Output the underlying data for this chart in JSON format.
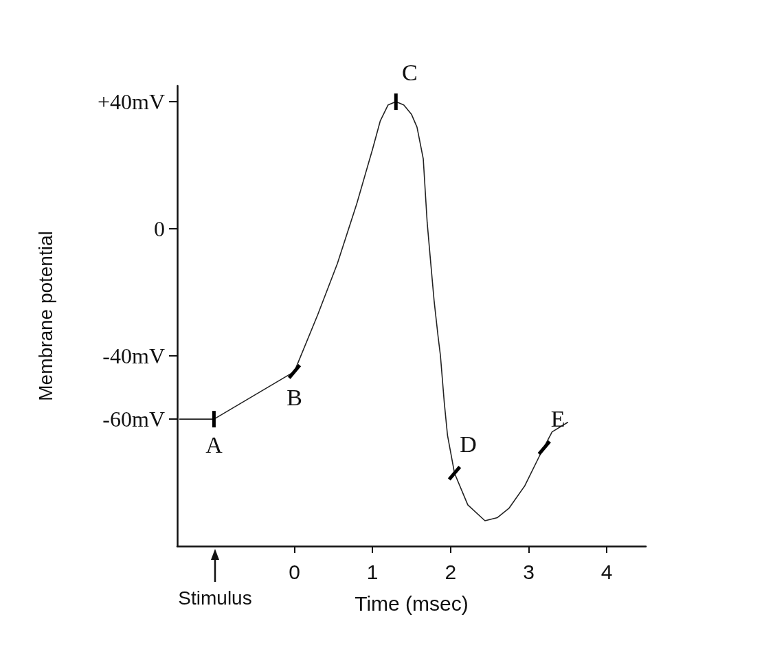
{
  "chart_data": {
    "type": "line",
    "xlabel": "Time (msec)",
    "ylabel": "Membrane potential",
    "x": [
      -1.47,
      -1.03,
      0,
      0.3,
      0.55,
      0.8,
      1.0,
      1.1,
      1.2,
      1.3,
      1.4,
      1.5,
      1.57,
      1.65,
      1.7,
      1.75,
      1.79,
      1.84,
      1.87,
      1.92,
      1.96,
      2.05,
      2.22,
      2.44,
      2.6,
      2.75,
      2.95,
      3.15,
      3.3,
      3.5
    ],
    "series": [
      {
        "color": "#222222",
        "values": [
          -60,
          -60,
          -45,
          -27,
          -11,
          8,
          25,
          34,
          39,
          40,
          39,
          36,
          32,
          22,
          2,
          -12,
          -23,
          -34,
          -40,
          -55,
          -65,
          -77,
          -87,
          -92,
          -91,
          -88,
          -81,
          -71,
          -64,
          -61
        ]
      }
    ],
    "xlim": [
      -1.5,
      4.5
    ],
    "xticks": [
      0,
      1,
      2,
      3,
      4
    ],
    "ylim": [
      -100,
      45
    ],
    "yticks": [
      {
        "value": 40,
        "label": "+40mV"
      },
      0,
      {
        "value": -40,
        "label": "-40mV"
      },
      {
        "value": -60,
        "label": "-60mV"
      }
    ],
    "annotations": [
      {
        "text": "A",
        "x": -1.03,
        "y": -60
      },
      {
        "text": "B",
        "x": 0,
        "y": -45
      },
      {
        "text": "C",
        "x": 1.3,
        "y": 40
      },
      {
        "text": "D",
        "x": 2.05,
        "y": -77
      },
      {
        "text": "E",
        "x": 3.2,
        "y": -69
      },
      "Stimulus"
    ],
    "marker": "none",
    "line_style": "solid"
  }
}
